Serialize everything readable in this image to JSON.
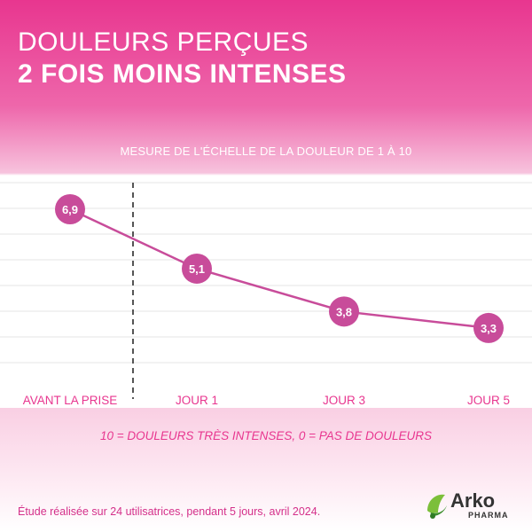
{
  "header": {
    "title_line1": "DOULEURS PERÇUES",
    "title_line2": "2 FOIS MOINS INTENSES"
  },
  "chart_data": {
    "type": "line",
    "title": "MESURE DE L'ÉCHELLE DE LA DOULEUR DE 1 À 10",
    "categories": [
      "AVANT LA PRISE",
      "JOUR 1",
      "JOUR 3",
      "JOUR 5"
    ],
    "values": [
      6.9,
      5.1,
      3.8,
      3.3
    ],
    "labels": [
      "6,9",
      "5,1",
      "3,8",
      "3,3"
    ],
    "grid": true,
    "ylim": [
      0,
      10
    ],
    "colors": {
      "line": "#c84c9a",
      "marker": "#c84c9a",
      "divider": "#555555",
      "tick": "#e8368f"
    }
  },
  "scale_note": "10 = DOULEURS TRÈS INTENSES, 0 = PAS DE DOULEURS",
  "study_note": "Étude réalisée sur 24 utilisatrices, pendant 5 jours, avril 2024.",
  "brand": {
    "name": "Arko",
    "sub": "PHARMA"
  }
}
